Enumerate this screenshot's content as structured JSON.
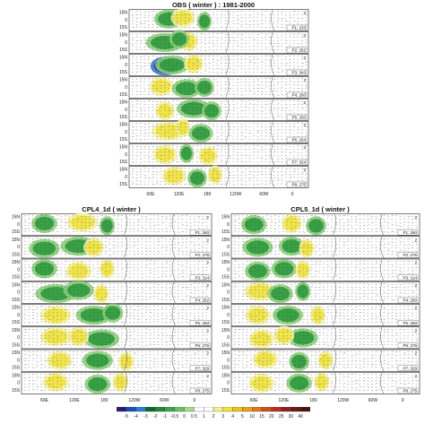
{
  "panels": [
    {
      "id": "obs",
      "title": "OBS ( winter ) : 1981-2000",
      "rows": [
        {
          "tag": "P1: 233",
          "num": "2"
        },
        {
          "tag": "P2: 262",
          "num": "2"
        },
        {
          "tag": "P3: 343",
          "num": "2"
        },
        {
          "tag": "P4: 260",
          "num": "2"
        },
        {
          "tag": "P5: 250",
          "num": "2"
        },
        {
          "tag": "P6: 264",
          "num": "2"
        },
        {
          "tag": "P7: 324",
          "num": "2"
        },
        {
          "tag": "P8: 275",
          "num": "2"
        }
      ]
    },
    {
      "id": "cpl4",
      "title": "CPL4_1d ( winter )",
      "rows": [
        {
          "tag": "P1: 260",
          "num": "2"
        },
        {
          "tag": "P2: 276",
          "num": "2"
        },
        {
          "tag": "P3: 314",
          "num": "2"
        },
        {
          "tag": "P4: 262",
          "num": "2"
        },
        {
          "tag": "P5: 260",
          "num": "2"
        },
        {
          "tag": "P6: 276",
          "num": "2"
        },
        {
          "tag": "P7: 329",
          "num": "2"
        },
        {
          "tag": "P8: 275",
          "num": "2"
        }
      ]
    },
    {
      "id": "cpl5",
      "title": "CPL5_1d ( winter )",
      "rows": [
        {
          "tag": "P1: 260",
          "num": "2"
        },
        {
          "tag": "P2: 276",
          "num": "2"
        },
        {
          "tag": "P3: 314",
          "num": "2"
        },
        {
          "tag": "P4: 260",
          "num": "2"
        },
        {
          "tag": "P5: 260",
          "num": "2"
        },
        {
          "tag": "P6: 276",
          "num": "2"
        },
        {
          "tag": "P7: 329",
          "num": "2"
        },
        {
          "tag": "P8: 275",
          "num": "2"
        }
      ]
    }
  ],
  "lat_labels": [
    "15N",
    "0",
    "15S"
  ],
  "lon_labels": [
    "60E",
    "120E",
    "180",
    "120W",
    "60W",
    "0"
  ],
  "colorbar": {
    "ticks": [
      "-5",
      "-4",
      "-3",
      "-2",
      "-1",
      "-0.5",
      "0",
      "0.5",
      "1",
      "2",
      "3",
      "4",
      "5",
      "10",
      "15",
      "20",
      "25",
      "30",
      "40"
    ],
    "colors": [
      "#2a1a7a",
      "#1f4fb5",
      "#2a7fd0",
      "#0d6b2e",
      "#1d8a35",
      "#3aa84a",
      "#68c060",
      "#a6d98c",
      "#ffffff",
      "#ffffff",
      "#f5f08a",
      "#f0e040",
      "#f0c020",
      "#e8a020",
      "#e07820",
      "#d05020",
      "#b83020",
      "#902020",
      "#701818",
      "#4a1010"
    ]
  }
}
